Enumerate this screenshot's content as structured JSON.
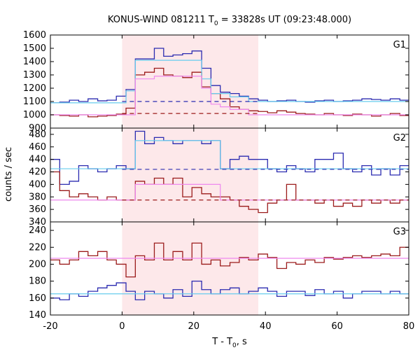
{
  "chart_data": {
    "type": "line",
    "title_main": "KONUS-WIND 081211 T",
    "title_sub": "0",
    "title_rest": " = 33828s UT (09:23:48.000)",
    "xlabel_main": "T - T",
    "xlabel_sub": "0",
    "xlabel_rest": ", s",
    "ylabel": "counts / sec",
    "xlim": [
      -20,
      80
    ],
    "x_ticks": [
      "-20",
      "0",
      "20",
      "40",
      "60",
      "80"
    ],
    "x_tick_values": [
      -20,
      0,
      20,
      40,
      60,
      80
    ],
    "highlight_interval": [
      0,
      38
    ],
    "bin_edges": [
      -20,
      -17.4,
      -14.7,
      -12.1,
      -9.5,
      -6.8,
      -4.2,
      -1.6,
      1.1,
      3.7,
      6.3,
      9.0,
      11.6,
      14.2,
      16.9,
      19.5,
      22.2,
      24.8,
      27.4,
      30.1,
      32.7,
      35.3,
      38.0,
      40.6,
      43.2,
      45.9,
      48.5,
      51.1,
      53.8,
      56.4,
      59.0,
      61.7,
      64.3,
      66.9,
      69.6,
      72.2,
      74.8,
      77.5,
      80
    ],
    "panels": [
      {
        "label": "G1",
        "ylim": [
          900,
          1600
        ],
        "y_ticks": [
          900,
          1000,
          1100,
          1200,
          1300,
          1400,
          1500,
          1600
        ],
        "series": [
          {
            "role": "observed",
            "color": "#2b2bb0",
            "values": [
              1090,
              1095,
              1110,
              1100,
              1120,
              1105,
              1110,
              1140,
              1190,
              1420,
              1420,
              1500,
              1440,
              1450,
              1460,
              1480,
              1350,
              1220,
              1170,
              1160,
              1140,
              1120,
              1110,
              1100,
              1105,
              1110,
              1100,
              1095,
              1105,
              1110,
              1100,
              1105,
              1110,
              1120,
              1115,
              1110,
              1120,
              1110
            ]
          },
          {
            "role": "observed",
            "color": "#9b1b1b",
            "values": [
              1000,
              995,
              990,
              1000,
              985,
              990,
              995,
              1005,
              1050,
              1300,
              1320,
              1350,
              1300,
              1290,
              1280,
              1320,
              1210,
              1160,
              1120,
              1060,
              1040,
              1030,
              1025,
              1015,
              1030,
              1020,
              1010,
              1005,
              1000,
              1010,
              1000,
              995,
              1005,
              1000,
              990,
              1000,
              1010,
              995
            ]
          },
          {
            "role": "model",
            "color": "#66ccee",
            "values": [
              1090,
              1090,
              1090,
              1090,
              1090,
              1090,
              1090,
              1090,
              1180,
              1410,
              1410,
              1410,
              1410,
              1410,
              1410,
              1410,
              1270,
              1160,
              1160,
              1135,
              1135,
              1100,
              1100,
              1100,
              1100,
              1100,
              1100,
              1100,
              1100,
              1100,
              1100,
              1100,
              1100,
              1100,
              1100,
              1100,
              1100,
              1100
            ]
          },
          {
            "role": "model",
            "color": "#ee88ee",
            "values": [
              1000,
              1000,
              1000,
              1000,
              1000,
              1000,
              1000,
              1000,
              1000,
              1270,
              1270,
              1290,
              1290,
              1290,
              1290,
              1290,
              1200,
              1080,
              1060,
              1040,
              1040,
              1000,
              1000,
              1000,
              1000,
              1000,
              1000,
              1000,
              1000,
              1000,
              1000,
              1000,
              1000,
              1000,
              1000,
              1000,
              1000,
              1000
            ]
          },
          {
            "role": "background",
            "color": "#2b2bb0",
            "dashed": true,
            "x_range": [
              0,
              38
            ],
            "value": 1100
          },
          {
            "role": "background",
            "color": "#9b1b1b",
            "dashed": true,
            "x_range": [
              0,
              38
            ],
            "value": 1010
          }
        ]
      },
      {
        "label": "G2",
        "ylim": [
          340,
          490
        ],
        "y_ticks": [
          340,
          360,
          380,
          400,
          420,
          440,
          460,
          480
        ],
        "series": [
          {
            "role": "observed",
            "color": "#2b2bb0",
            "values": [
              440,
              400,
              405,
              430,
              425,
              420,
              425,
              430,
              425,
              485,
              465,
              475,
              470,
              465,
              470,
              470,
              465,
              470,
              425,
              440,
              445,
              440,
              440,
              425,
              420,
              430,
              425,
              420,
              440,
              440,
              450,
              425,
              420,
              430,
              415,
              425,
              415,
              430
            ]
          },
          {
            "role": "observed",
            "color": "#9b1b1b",
            "values": [
              420,
              390,
              380,
              385,
              380,
              375,
              380,
              375,
              375,
              405,
              400,
              410,
              400,
              410,
              380,
              395,
              385,
              380,
              380,
              375,
              365,
              360,
              355,
              370,
              375,
              400,
              375,
              375,
              370,
              375,
              365,
              370,
              365,
              375,
              370,
              375,
              370,
              375
            ]
          },
          {
            "role": "model",
            "color": "#66ccee",
            "values": [
              425,
              425,
              425,
              425,
              425,
              425,
              425,
              425,
              425,
              470,
              470,
              470,
              470,
              470,
              470,
              470,
              470,
              470,
              425,
              425,
              425,
              425,
              425,
              425,
              425,
              425,
              425,
              425,
              425,
              425,
              425,
              425,
              425,
              425,
              425,
              425,
              425,
              425
            ]
          },
          {
            "role": "model",
            "color": "#ee88ee",
            "values": [
              375,
              375,
              375,
              375,
              375,
              375,
              375,
              375,
              375,
              400,
              400,
              400,
              400,
              400,
              400,
              400,
              400,
              400,
              375,
              375,
              375,
              375,
              375,
              375,
              375,
              375,
              375,
              375,
              375,
              375,
              375,
              375,
              375,
              375,
              375,
              375,
              375,
              375
            ]
          },
          {
            "role": "background",
            "color": "#2b2bb0",
            "dashed": true,
            "x_range": [
              0,
              80
            ],
            "value": 424
          },
          {
            "role": "background",
            "color": "#9b1b1b",
            "dashed": true,
            "x_range": [
              0,
              80
            ],
            "value": 375
          }
        ]
      },
      {
        "label": "G3",
        "ylim": [
          140,
          250
        ],
        "y_ticks": [
          140,
          160,
          180,
          200,
          220,
          240
        ],
        "series": [
          {
            "role": "observed",
            "color": "#2b2bb0",
            "values": [
              160,
              158,
              165,
              162,
              168,
              172,
              175,
              178,
              168,
              158,
              168,
              165,
              160,
              170,
              162,
              180,
              170,
              165,
              170,
              172,
              165,
              168,
              172,
              168,
              162,
              168,
              168,
              163,
              170,
              165,
              168,
              160,
              165,
              168,
              168,
              165,
              168,
              165
            ]
          },
          {
            "role": "observed",
            "color": "#9b1b1b",
            "values": [
              205,
              200,
              205,
              215,
              210,
              215,
              205,
              200,
              185,
              210,
              205,
              225,
              205,
              215,
              205,
              225,
              200,
              205,
              198,
              202,
              208,
              205,
              212,
              208,
              195,
              202,
              200,
              205,
              202,
              208,
              206,
              208,
              210,
              208,
              210,
              212,
              210,
              220
            ]
          },
          {
            "role": "model",
            "color": "#66ccee",
            "values": [
              165,
              165,
              165,
              165,
              165,
              165,
              165,
              165,
              165,
              165,
              165,
              165,
              165,
              165,
              165,
              165,
              165,
              165,
              165,
              165,
              165,
              165,
              165,
              165,
              165,
              165,
              165,
              165,
              165,
              165,
              165,
              165,
              165,
              165,
              165,
              165,
              165,
              165
            ]
          },
          {
            "role": "model",
            "color": "#ee88ee",
            "values": [
              207,
              207,
              207,
              207,
              207,
              207,
              207,
              207,
              207,
              207,
              207,
              207,
              207,
              207,
              207,
              207,
              207,
              207,
              207,
              207,
              207,
              207,
              207,
              207,
              207,
              207,
              207,
              207,
              207,
              207,
              207,
              207,
              207,
              207,
              207,
              207,
              207,
              207
            ]
          }
        ]
      }
    ]
  },
  "colors": {
    "highlight": "#fde8ea",
    "frame": "#000000"
  }
}
